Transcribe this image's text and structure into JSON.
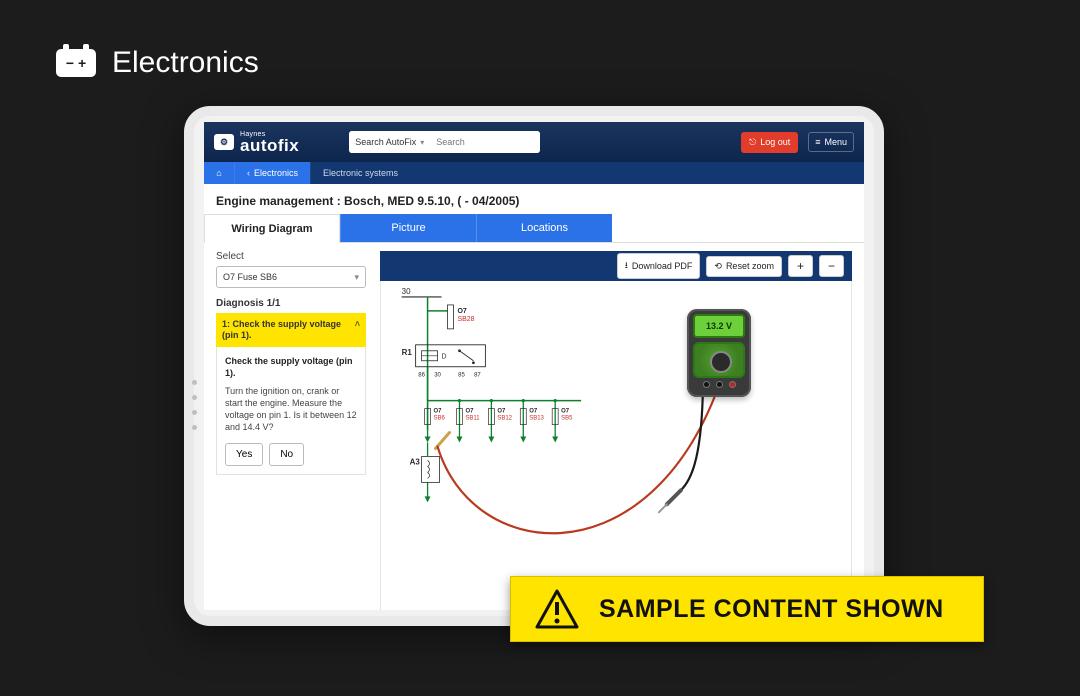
{
  "page": {
    "header_label": "Electronics",
    "banner_text": "SAMPLE CONTENT SHOWN"
  },
  "app": {
    "brand_small": "Haynes",
    "brand_big": "autofix",
    "search_scope": "Search AutoFix",
    "search_placeholder": "Search",
    "logout_label": "Log out",
    "menu_label": "Menu"
  },
  "crumbs": {
    "back": "Electronics",
    "current": "Electronic systems"
  },
  "title": "Engine management :  Bosch, MED 9.5.10, ( - 04/2005)",
  "tabs": {
    "wiring": "Wiring Diagram",
    "picture": "Picture",
    "locations": "Locations"
  },
  "left_panel": {
    "select_label": "Select",
    "select_value": "O7  Fuse  SB6",
    "diagnosis_label": "Diagnosis 1/1",
    "step_head": "1: Check the supply voltage (pin 1).",
    "step_question": "Check the supply voltage (pin 1).",
    "step_text": "Turn the ignition on, crank or start the engine. Measure the voltage on pin 1. Is it between 12 and 14.4 V?",
    "yes": "Yes",
    "no": "No"
  },
  "panel_buttons": {
    "download": "Download PDF",
    "reset": "Reset zoom",
    "zoom_in": "+",
    "zoom_out": "−"
  },
  "meter": {
    "reading": "13.2 V"
  },
  "diagram": {
    "top_label": "30",
    "node_o7": "O7",
    "node_sb28": "SB28",
    "node_r1": "R1",
    "node_d": "D",
    "pins": [
      "86",
      "30",
      "85",
      "87"
    ],
    "fuse_labels": [
      {
        "top": "O7",
        "bot": "SB6"
      },
      {
        "top": "O7",
        "bot": "SB11"
      },
      {
        "top": "O7",
        "bot": "SB12"
      },
      {
        "top": "O7",
        "bot": "SB13"
      },
      {
        "top": "O7",
        "bot": "SB5"
      }
    ],
    "node_a3": "A3",
    "colors": {
      "wire_green": "#0f7f2e",
      "label_red": "#c43027",
      "text": "#2a2a2a",
      "lead_red": "#b83a1f",
      "lead_black": "#1a1a1a",
      "probe_gold": "#caa24a"
    }
  }
}
